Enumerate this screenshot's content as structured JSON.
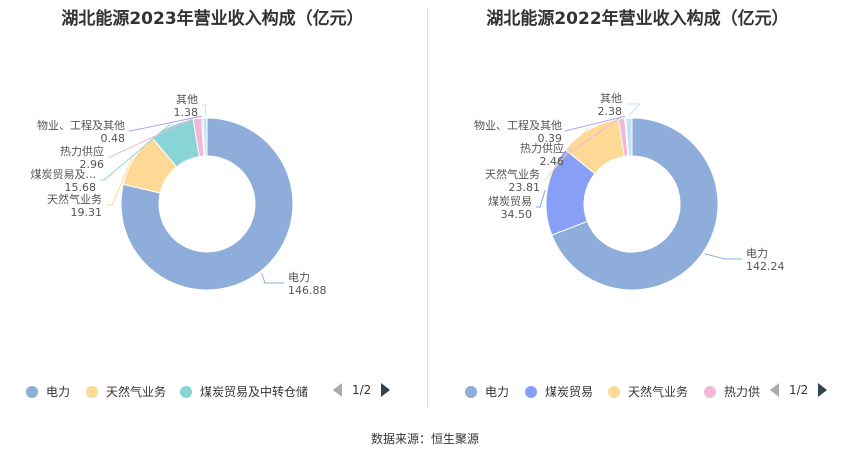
{
  "source_label": "数据来源：恒生聚源",
  "chart_data": [
    {
      "type": "pie",
      "title": "湖北能源2023年营业收入构成（亿元）",
      "labels": [
        "电力",
        "天然气业务",
        "煤炭贸易及...",
        "热力供应",
        "物业、工程及其他",
        "其他"
      ],
      "values": [
        146.88,
        19.31,
        15.68,
        2.96,
        0.48,
        1.38
      ],
      "value_labels": [
        "146.88",
        "19.31",
        "15.68",
        "2.96",
        "0.48",
        "1.38"
      ],
      "colors": [
        "#8eaddb",
        "#fdd995",
        "#88d4d7",
        "#f1b6d9",
        "#aca5ee",
        "#c6e0f5"
      ],
      "legend": [
        "电力",
        "天然气业务",
        "煤炭贸易及中转仓储"
      ],
      "legend_colors": [
        "#8eaddb",
        "#fdd995",
        "#88d4d7"
      ],
      "page": "1/2"
    },
    {
      "type": "pie",
      "title": "湖北能源2022年营业收入构成（亿元）",
      "labels": [
        "电力",
        "煤炭贸易",
        "天然气业务",
        "热力供应",
        "物业、工程及其他",
        "其他"
      ],
      "values": [
        142.24,
        34.5,
        23.81,
        2.46,
        0.39,
        2.38
      ],
      "value_labels": [
        "142.24",
        "34.50",
        "23.81",
        "2.46",
        "0.39",
        "2.38"
      ],
      "colors": [
        "#8eaddb",
        "#879ff5",
        "#fdd995",
        "#f1b6d9",
        "#aca5ee",
        "#c6e0f5"
      ],
      "legend": [
        "电力",
        "煤炭贸易",
        "天然气业务",
        "热力供"
      ],
      "legend_colors": [
        "#8eaddb",
        "#879ff5",
        "#fdd995",
        "#f1b6d9"
      ],
      "page": "1/2"
    }
  ]
}
